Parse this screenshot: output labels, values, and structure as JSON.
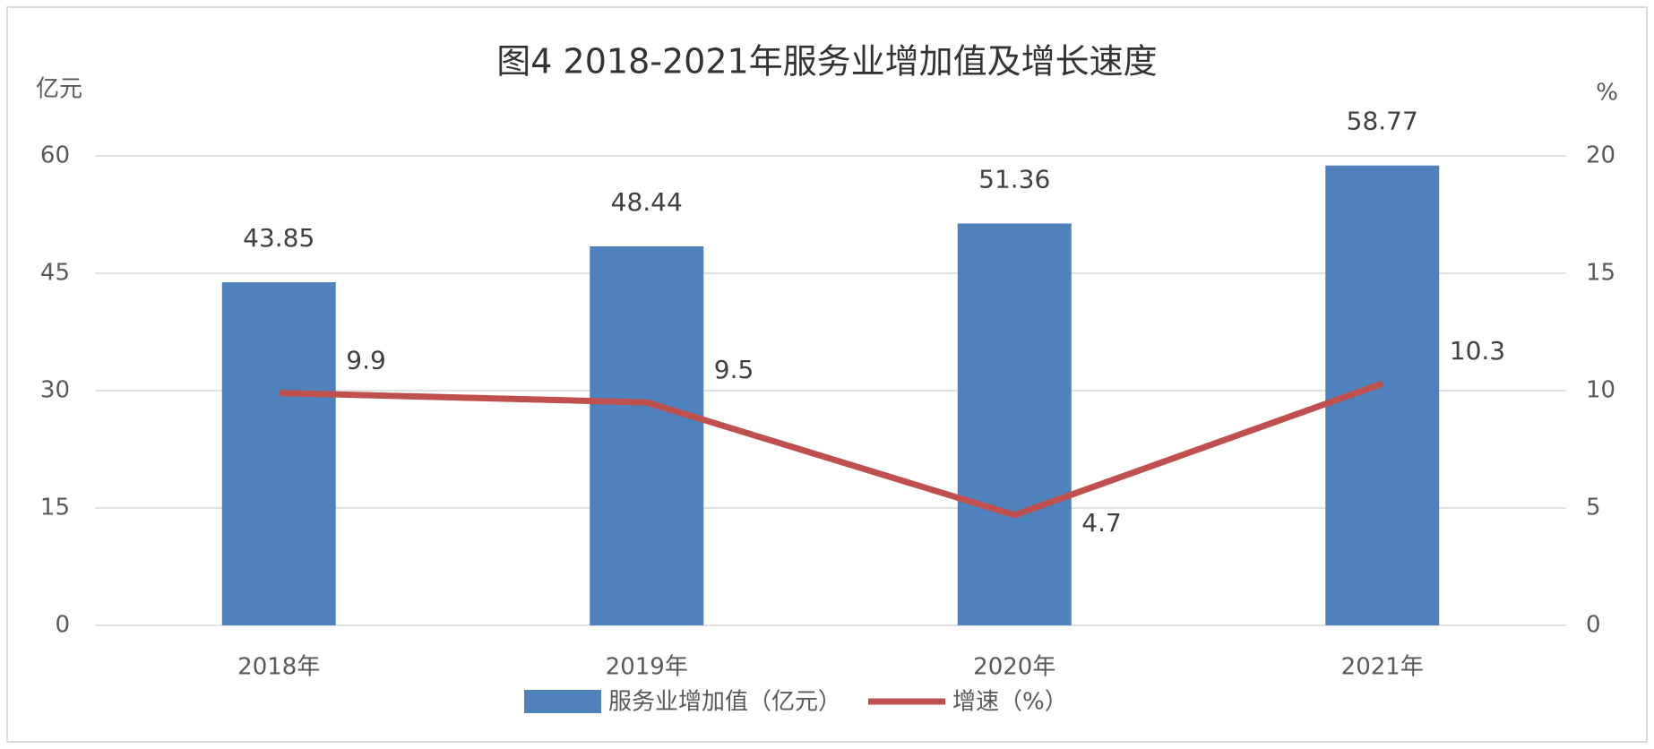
{
  "chart_data": {
    "type": "bar-line",
    "title": "图4 2018-2021年服务业增加值及增长速度",
    "y_label": "亿元",
    "y2_label": "%",
    "categories": [
      "2018年",
      "2019年",
      "2020年",
      "2021年"
    ],
    "series": [
      {
        "name": "服务业增加值（亿元）",
        "type": "bar",
        "color": "#4f81bd",
        "values": [
          43.85,
          48.44,
          51.36,
          58.77
        ]
      },
      {
        "name": "增速（%）",
        "type": "line",
        "axis": "y2",
        "color": "#c0504d",
        "values": [
          9.9,
          9.5,
          4.7,
          10.3
        ]
      }
    ],
    "ylim": [
      0,
      60
    ],
    "yticks": [
      0,
      15,
      30,
      45,
      60
    ],
    "y2lim": [
      0,
      20
    ],
    "y2ticks": [
      0,
      5,
      10,
      15,
      20
    ],
    "grid": true,
    "legend": "bottom"
  }
}
